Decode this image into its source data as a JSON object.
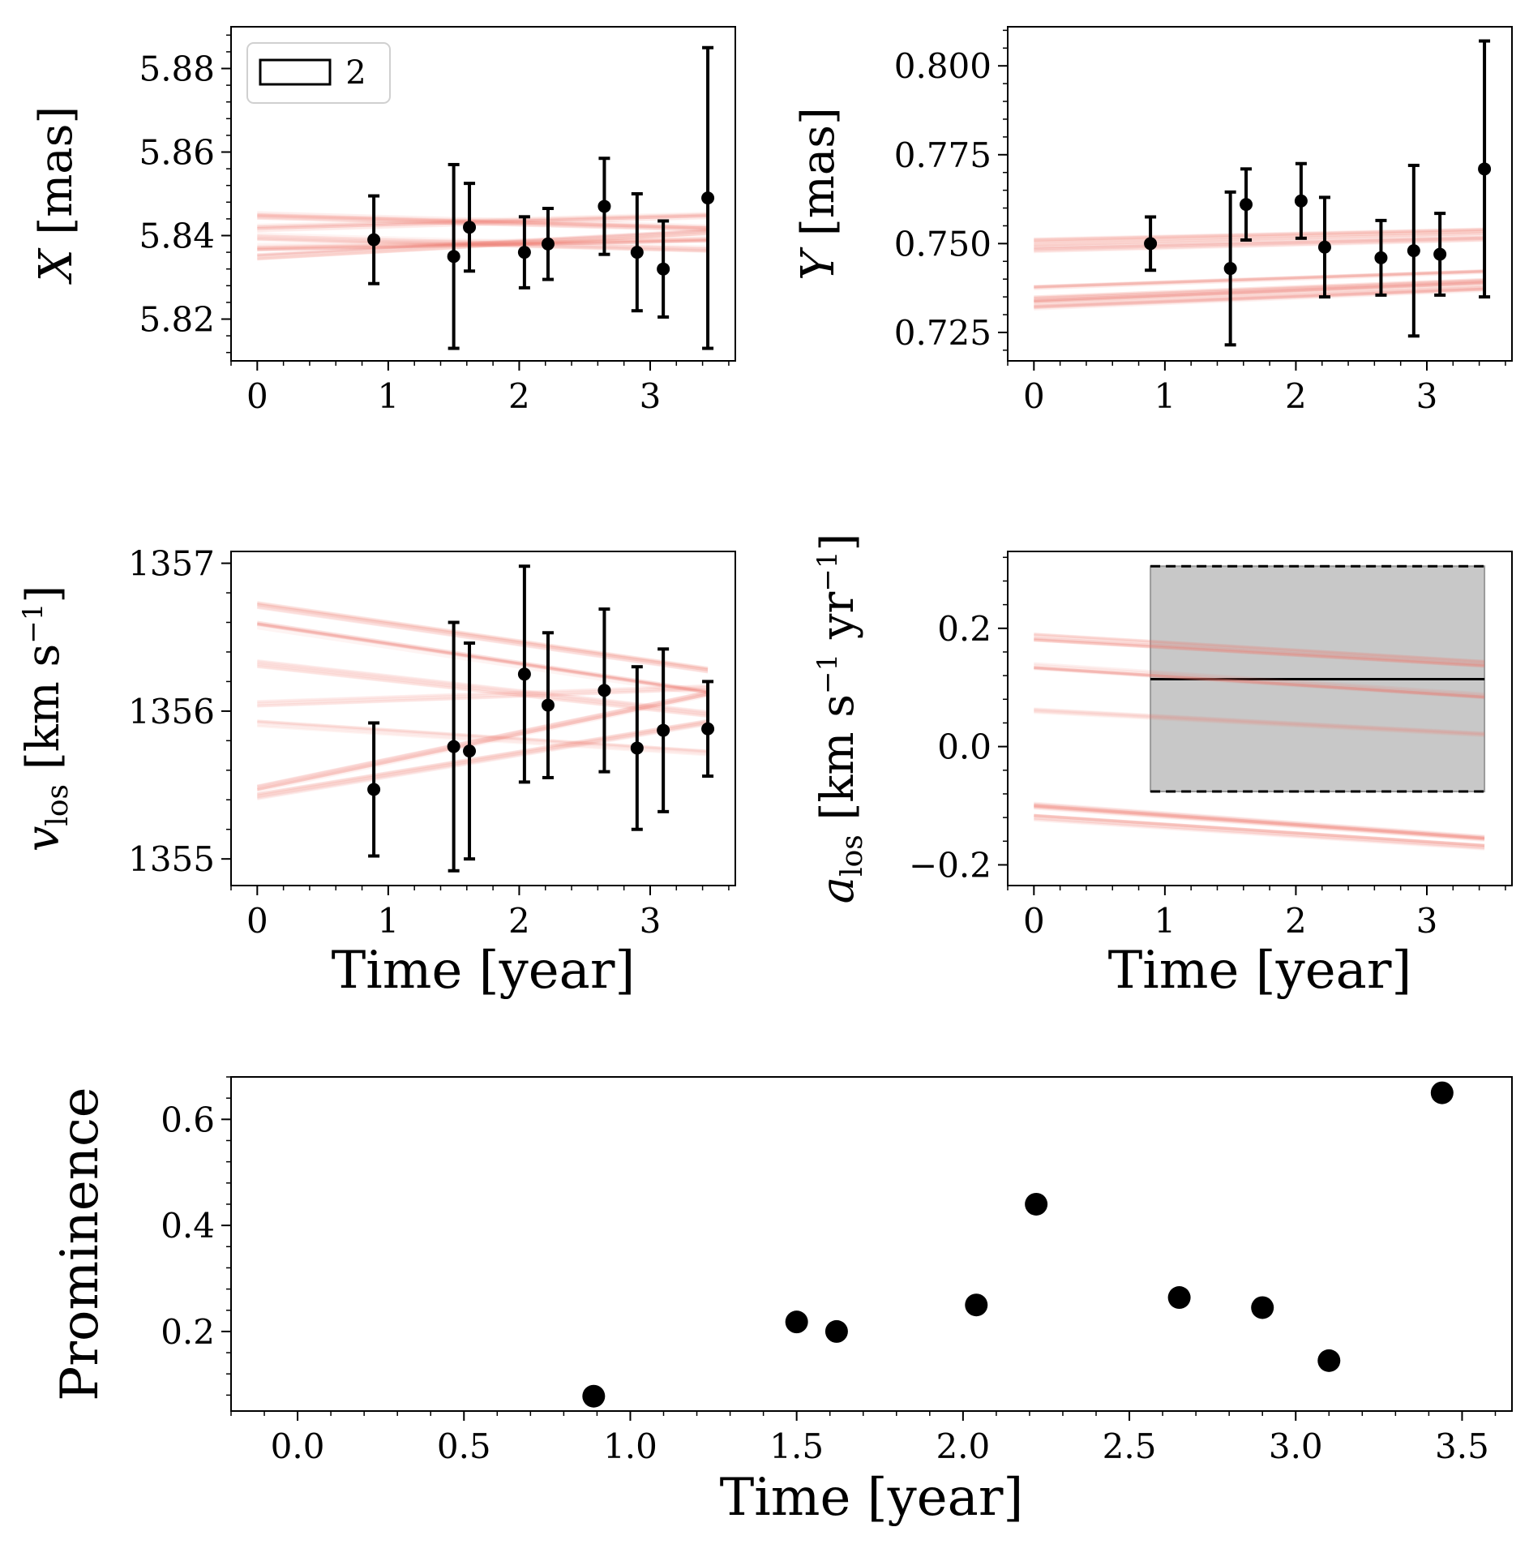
{
  "figure_title": "",
  "colors": {
    "data": "#000000",
    "model": "#f07a6e",
    "band_fill": "#c8c8c8",
    "axis": "#000000"
  },
  "chart_data": [
    {
      "id": "x",
      "type": "scatter",
      "title": "",
      "xlabel": "",
      "ylabel": "X [mas]",
      "ylabel_var": "X",
      "ylabel_unit": "[mas]",
      "xlim": [
        -0.2,
        3.65
      ],
      "ylim": [
        5.81,
        5.89
      ],
      "xticks": [
        0,
        1,
        2,
        3
      ],
      "xticklabels": [
        "0",
        "1",
        "2",
        "3"
      ],
      "yticks": [
        5.82,
        5.84,
        5.86,
        5.88
      ],
      "yticklabels": [
        "5.82",
        "5.84",
        "5.86",
        "5.88"
      ],
      "legend": {
        "position": "top-left",
        "entries": [
          "2"
        ]
      },
      "series": [
        {
          "name": "data",
          "x": [
            0.89,
            1.5,
            1.62,
            2.04,
            2.22,
            2.65,
            2.9,
            3.1,
            3.44
          ],
          "y": [
            5.839,
            5.835,
            5.842,
            5.836,
            5.838,
            5.847,
            5.836,
            5.832,
            5.849
          ],
          "yerr": [
            0.0105,
            0.022,
            0.0105,
            0.0085,
            0.0085,
            0.0115,
            0.014,
            0.0115,
            0.036
          ]
        }
      ],
      "model_lines": [
        {
          "y0": 5.8448,
          "y1": 5.8418,
          "count": 12
        },
        {
          "y0": 5.8372,
          "y1": 5.8392,
          "count": 12
        },
        {
          "y0": 5.8418,
          "y1": 5.8448,
          "count": 10
        },
        {
          "y0": 5.8348,
          "y1": 5.8408,
          "count": 10
        },
        {
          "y0": 5.8398,
          "y1": 5.8368,
          "count": 8
        }
      ]
    },
    {
      "id": "y",
      "type": "scatter",
      "title": "",
      "xlabel": "",
      "ylabel": "Y [mas]",
      "ylabel_var": "Y",
      "ylabel_unit": "[mas]",
      "xlim": [
        -0.2,
        3.65
      ],
      "ylim": [
        0.717,
        0.811
      ],
      "xticks": [
        0,
        1,
        2,
        3
      ],
      "xticklabels": [
        "0",
        "1",
        "2",
        "3"
      ],
      "yticks": [
        0.725,
        0.75,
        0.775,
        0.8
      ],
      "yticklabels": [
        "0.725",
        "0.750",
        "0.775",
        "0.800"
      ],
      "series": [
        {
          "name": "data",
          "x": [
            0.89,
            1.5,
            1.62,
            2.04,
            2.22,
            2.65,
            2.9,
            3.1,
            3.44
          ],
          "y": [
            0.75,
            0.743,
            0.761,
            0.762,
            0.749,
            0.746,
            0.748,
            0.747,
            0.771
          ],
          "yerr": [
            0.0075,
            0.0215,
            0.01,
            0.0105,
            0.014,
            0.0105,
            0.024,
            0.0115,
            0.036
          ]
        }
      ],
      "model_lines": [
        {
          "y0": 0.7505,
          "y1": 0.7535,
          "count": 14
        },
        {
          "y0": 0.7485,
          "y1": 0.7515,
          "count": 10
        },
        {
          "y0": 0.7345,
          "y1": 0.7395,
          "count": 14
        },
        {
          "y0": 0.7325,
          "y1": 0.7375,
          "count": 12
        },
        {
          "y0": 0.7375,
          "y1": 0.742,
          "count": 8
        }
      ]
    },
    {
      "id": "vlos",
      "type": "scatter",
      "title": "",
      "xlabel": "Time [year]",
      "ylabel": "v_los [km s^-1]",
      "ylabel_var": "v",
      "ylabel_sub": "los",
      "ylabel_unit": "[km s",
      "ylabel_sup": "−1",
      "ylabel_close": "]",
      "xlim": [
        -0.2,
        3.65
      ],
      "ylim": [
        1354.82,
        1357.08
      ],
      "xticks": [
        0,
        1,
        2,
        3
      ],
      "xticklabels": [
        "0",
        "1",
        "2",
        "3"
      ],
      "yticks": [
        1355,
        1356,
        1357
      ],
      "yticklabels": [
        "1355",
        "1356",
        "1357"
      ],
      "series": [
        {
          "name": "data",
          "x": [
            0.89,
            1.5,
            1.62,
            2.04,
            2.22,
            2.65,
            2.9,
            3.1,
            3.44
          ],
          "y": [
            1355.47,
            1355.76,
            1355.73,
            1356.25,
            1356.04,
            1356.14,
            1355.75,
            1355.87,
            1355.88
          ],
          "yerr": [
            0.45,
            0.84,
            0.73,
            0.73,
            0.49,
            0.55,
            0.55,
            0.55,
            0.32
          ]
        }
      ],
      "model_lines": [
        {
          "y0": 1356.72,
          "y1": 1356.28,
          "count": 10
        },
        {
          "y0": 1356.58,
          "y1": 1356.12,
          "count": 10
        },
        {
          "y0": 1356.32,
          "y1": 1355.98,
          "count": 8
        },
        {
          "y0": 1356.05,
          "y1": 1356.16,
          "count": 6
        },
        {
          "y0": 1355.48,
          "y1": 1356.12,
          "count": 10
        },
        {
          "y0": 1355.42,
          "y1": 1355.92,
          "count": 8
        },
        {
          "y0": 1355.92,
          "y1": 1355.72,
          "count": 6
        }
      ]
    },
    {
      "id": "alos",
      "type": "scatter",
      "title": "",
      "xlabel": "Time [year]",
      "ylabel": "a_los [km s^-1 yr^-1]",
      "ylabel_var": "a",
      "ylabel_sub": "los",
      "ylabel_unit": "[km s",
      "ylabel_sup": "−1",
      "ylabel_mid": " yr",
      "ylabel_sup2": "−1",
      "ylabel_close": "]",
      "xlim": [
        -0.2,
        3.65
      ],
      "ylim": [
        -0.235,
        0.33
      ],
      "xticks": [
        0,
        1,
        2,
        3
      ],
      "xticklabels": [
        "0",
        "1",
        "2",
        "3"
      ],
      "yticks": [
        -0.2,
        0,
        0.2
      ],
      "yticklabels": [
        "−0.2",
        "0.0",
        "0.2"
      ],
      "band": {
        "x0": 0.89,
        "x1": 3.44,
        "center": 0.114,
        "lower": -0.076,
        "upper": 0.305
      },
      "model_lines": [
        {
          "y0": 0.185,
          "y1": 0.14,
          "count": 14
        },
        {
          "y0": 0.135,
          "y1": 0.085,
          "count": 10
        },
        {
          "y0": 0.06,
          "y1": 0.02,
          "count": 6
        },
        {
          "y0": -0.1,
          "y1": -0.155,
          "count": 14
        },
        {
          "y0": -0.12,
          "y1": -0.17,
          "count": 10
        }
      ]
    },
    {
      "id": "prominence",
      "type": "scatter",
      "title": "",
      "xlabel": "Time [year]",
      "ylabel": "Prominence",
      "xlim": [
        -0.2,
        3.65
      ],
      "ylim": [
        0.05,
        0.68
      ],
      "xticks": [
        0,
        0.5,
        1,
        1.5,
        2,
        2.5,
        3,
        3.5
      ],
      "xticklabels": [
        "0.0",
        "0.5",
        "1.0",
        "1.5",
        "2.0",
        "2.5",
        "3.0",
        "3.5"
      ],
      "yticks": [
        0.2,
        0.4,
        0.6
      ],
      "yticklabels": [
        "0.2",
        "0.4",
        "0.6"
      ],
      "series": [
        {
          "name": "prominence",
          "x": [
            0.89,
            1.5,
            1.62,
            2.04,
            2.22,
            2.65,
            2.9,
            3.1,
            3.44
          ],
          "y": [
            0.078,
            0.218,
            0.2,
            0.25,
            0.44,
            0.264,
            0.245,
            0.145,
            0.65
          ]
        }
      ]
    }
  ]
}
